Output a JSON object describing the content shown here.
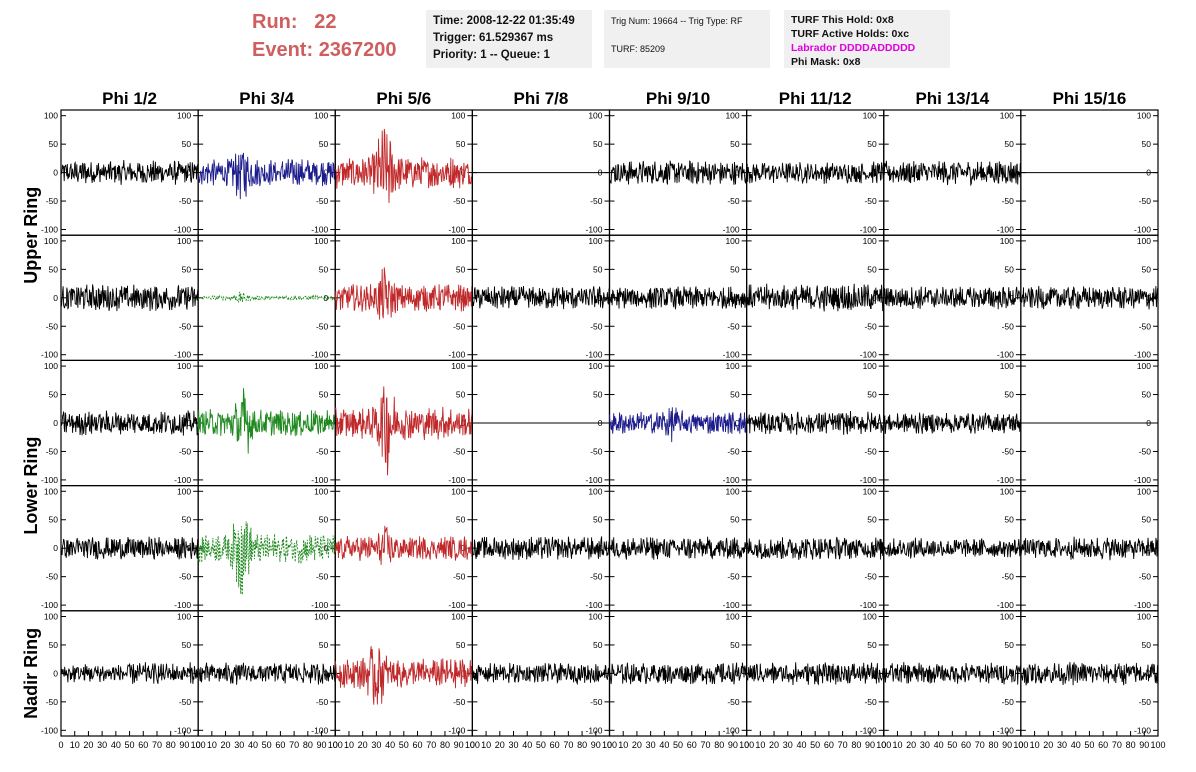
{
  "header": {
    "run_label": "Run:",
    "run_value": "22",
    "event_label": "Event:",
    "event_value": "2367200",
    "time": "Time: 2008-12-22 01:35:49",
    "trigger": "Trigger: 61.529367 ms",
    "priority": "Priority: 1 -- Queue: 1",
    "trig_num": "Trig Num: 19664 -- Trig Type: RF",
    "turf": "TURF: 85209",
    "turf_this_hold": "TURF This Hold: 0x8",
    "turf_active_holds": "TURF Active Holds: 0xc",
    "labrador": "Labrador DDDDADDDDD",
    "phi_mask": "Phi Mask: 0x8"
  },
  "colors": {
    "header_red": "#cf5f5f",
    "labrador_magenta": "#e100e1",
    "trace_black": "#000000",
    "trace_blue": "#1c1c8c",
    "trace_red": "#c0282a",
    "trace_green": "#1f8a1f"
  },
  "chart_data": {
    "type": "line",
    "columns": [
      "Phi 1/2",
      "Phi 3/4",
      "Phi 5/6",
      "Phi 7/8",
      "Phi 9/10",
      "Phi 11/12",
      "Phi 13/14",
      "Phi 15/16"
    ],
    "rows": [
      "Upper Ring",
      "Upper Ring",
      "Lower Ring",
      "Lower Ring",
      "Nadir Ring"
    ],
    "row_labels": [
      {
        "label": "Upper Ring",
        "rows": [
          0,
          1
        ]
      },
      {
        "label": "Lower Ring",
        "rows": [
          2,
          3
        ]
      },
      {
        "label": "Nadir Ring",
        "rows": [
          4
        ]
      }
    ],
    "xlim": [
      0,
      100
    ],
    "ylim": [
      -110,
      110
    ],
    "x_ticks": [
      "0",
      "10",
      "20",
      "30",
      "40",
      "50",
      "60",
      "70",
      "80",
      "90",
      "100"
    ],
    "y_ticks": [
      "100",
      "50",
      "0",
      "-50",
      "-100"
    ],
    "panels": [
      [
        {
          "color": "black",
          "amp": 18,
          "style": "solid",
          "flat": false
        },
        {
          "color": "blue",
          "amp": 20,
          "style": "solid",
          "flat": false,
          "burst_at": 32,
          "burst": 2.2
        },
        {
          "color": "red",
          "amp": 24,
          "style": "solid",
          "flat": false,
          "burst_at": 36,
          "burst": 3.2
        },
        {
          "color": "black",
          "amp": 0,
          "style": "solid",
          "flat": true
        },
        {
          "color": "black",
          "amp": 18,
          "style": "solid",
          "flat": false
        },
        {
          "color": "black",
          "amp": 16,
          "style": "solid",
          "flat": false
        },
        {
          "color": "black",
          "amp": 18,
          "style": "solid",
          "flat": false
        },
        {
          "color": "black",
          "amp": 0,
          "style": "solid",
          "flat": true
        }
      ],
      [
        {
          "color": "black",
          "amp": 20,
          "style": "solid",
          "flat": false
        },
        {
          "color": "green",
          "amp": 3,
          "style": "dashed",
          "flat": false,
          "burst_at": 30,
          "burst": 3
        },
        {
          "color": "red",
          "amp": 20,
          "style": "solid",
          "flat": false,
          "burst_at": 36,
          "burst": 2.4
        },
        {
          "color": "black",
          "amp": 17,
          "style": "solid",
          "flat": false
        },
        {
          "color": "black",
          "amp": 17,
          "style": "solid",
          "flat": false
        },
        {
          "color": "black",
          "amp": 20,
          "style": "solid",
          "flat": false
        },
        {
          "color": "black",
          "amp": 17,
          "style": "solid",
          "flat": false
        },
        {
          "color": "black",
          "amp": 17,
          "style": "solid",
          "flat": false
        }
      ],
      [
        {
          "color": "black",
          "amp": 18,
          "style": "solid",
          "flat": false
        },
        {
          "color": "green",
          "amp": 20,
          "style": "solid",
          "flat": false,
          "burst_at": 33,
          "burst": 2.8
        },
        {
          "color": "red",
          "amp": 24,
          "style": "solid",
          "flat": false,
          "burst_at": 37,
          "burst": 3.4
        },
        {
          "color": "black",
          "amp": 0,
          "style": "solid",
          "flat": true
        },
        {
          "color": "blue",
          "amp": 17,
          "style": "solid",
          "flat": false,
          "burst_at": 45,
          "burst": 1.8
        },
        {
          "color": "black",
          "amp": 17,
          "style": "solid",
          "flat": false
        },
        {
          "color": "black",
          "amp": 16,
          "style": "solid",
          "flat": false
        },
        {
          "color": "black",
          "amp": 0,
          "style": "solid",
          "flat": true
        }
      ],
      [
        {
          "color": "black",
          "amp": 17,
          "style": "solid",
          "flat": false
        },
        {
          "color": "green",
          "amp": 22,
          "style": "dashed",
          "flat": false,
          "burst_at": 32,
          "burst": 3.6
        },
        {
          "color": "red",
          "amp": 18,
          "style": "solid",
          "flat": false,
          "burst_at": 38,
          "burst": 2.2
        },
        {
          "color": "black",
          "amp": 17,
          "style": "solid",
          "flat": false
        },
        {
          "color": "black",
          "amp": 17,
          "style": "solid",
          "flat": false
        },
        {
          "color": "black",
          "amp": 17,
          "style": "solid",
          "flat": false
        },
        {
          "color": "black",
          "amp": 15,
          "style": "solid",
          "flat": false
        },
        {
          "color": "black",
          "amp": 17,
          "style": "solid",
          "flat": false
        }
      ],
      [
        {
          "color": "black",
          "amp": 16,
          "style": "solid",
          "flat": false
        },
        {
          "color": "black",
          "amp": 16,
          "style": "solid",
          "flat": false
        },
        {
          "color": "red",
          "amp": 22,
          "style": "solid",
          "flat": false,
          "burst_at": 30,
          "burst": 2.6
        },
        {
          "color": "black",
          "amp": 15,
          "style": "solid",
          "flat": false
        },
        {
          "color": "black",
          "amp": 16,
          "style": "solid",
          "flat": false
        },
        {
          "color": "black",
          "amp": 17,
          "style": "solid",
          "flat": false
        },
        {
          "color": "black",
          "amp": 16,
          "style": "solid",
          "flat": false
        },
        {
          "color": "black",
          "amp": 17,
          "style": "solid",
          "flat": false
        }
      ]
    ]
  }
}
